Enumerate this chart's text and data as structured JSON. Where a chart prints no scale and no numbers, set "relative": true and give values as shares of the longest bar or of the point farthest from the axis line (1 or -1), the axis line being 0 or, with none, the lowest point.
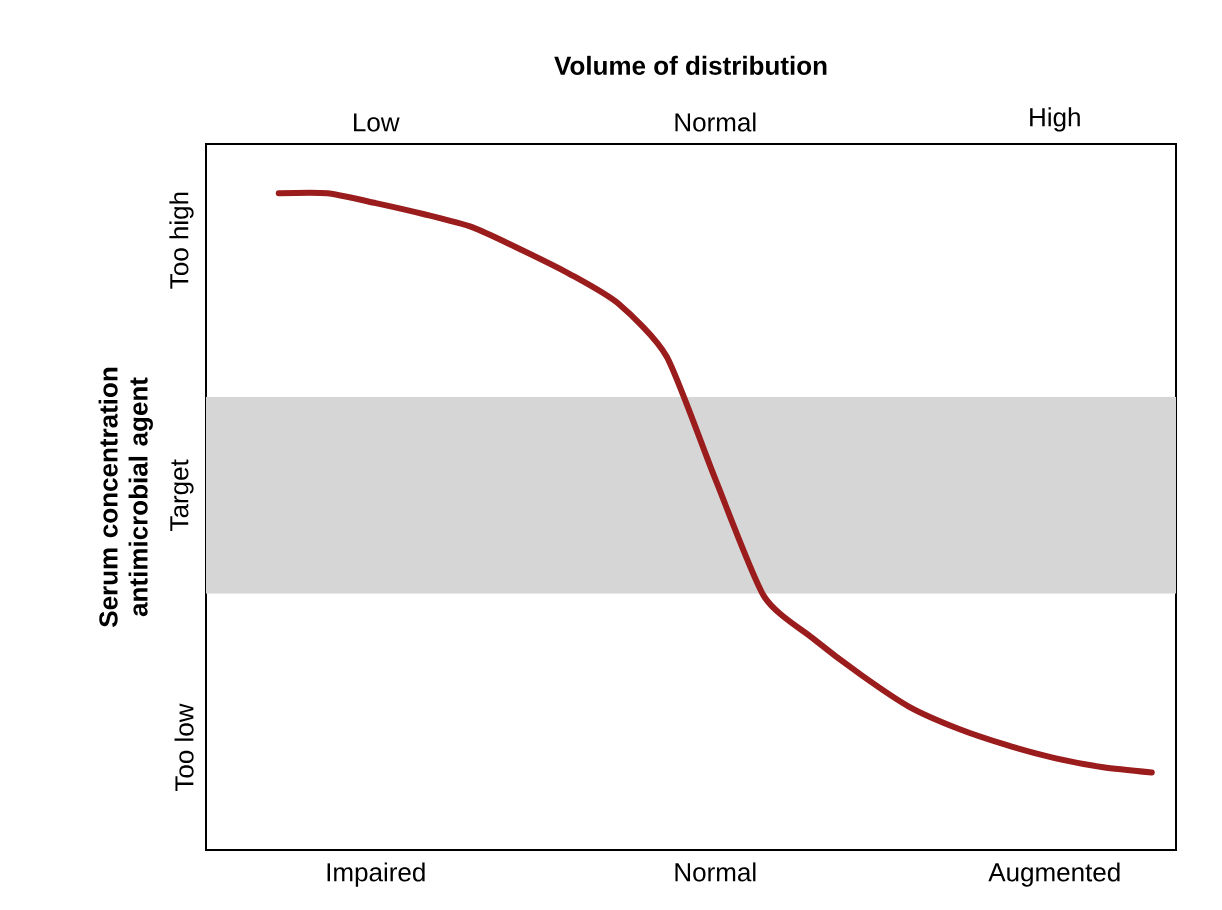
{
  "chart_data": {
    "type": "line",
    "relative": true,
    "xlabel": "Volume of distribution",
    "ylabel": "Serum concentration antimicrobial agent",
    "categories": [
      null,
      null,
      null,
      "Impaired",
      null,
      null,
      null,
      null,
      null,
      null,
      "Normal",
      null,
      null,
      null,
      null,
      null,
      null,
      "Augmented",
      null,
      null
    ],
    "annotations": [
      "Low",
      "Normal",
      "High",
      "Too low",
      "Target",
      "Too high"
    ],
    "bands": [
      {
        "axis": "y",
        "from": 0.39,
        "to": 0.69,
        "color": "#d6d6d6"
      }
    ],
    "series": [
      {
        "color": "#9b1c1c",
        "values": [
          null,
          1.0,
          1.0,
          0.985,
          0.968,
          0.948,
          0.914,
          0.877,
          0.832,
          0.751,
          0.565,
          0.387,
          0.323,
          0.267,
          0.218,
          0.185,
          0.16,
          0.14,
          0.126,
          0.118
        ]
      }
    ],
    "marker": "none",
    "line_style": "solid"
  }
}
